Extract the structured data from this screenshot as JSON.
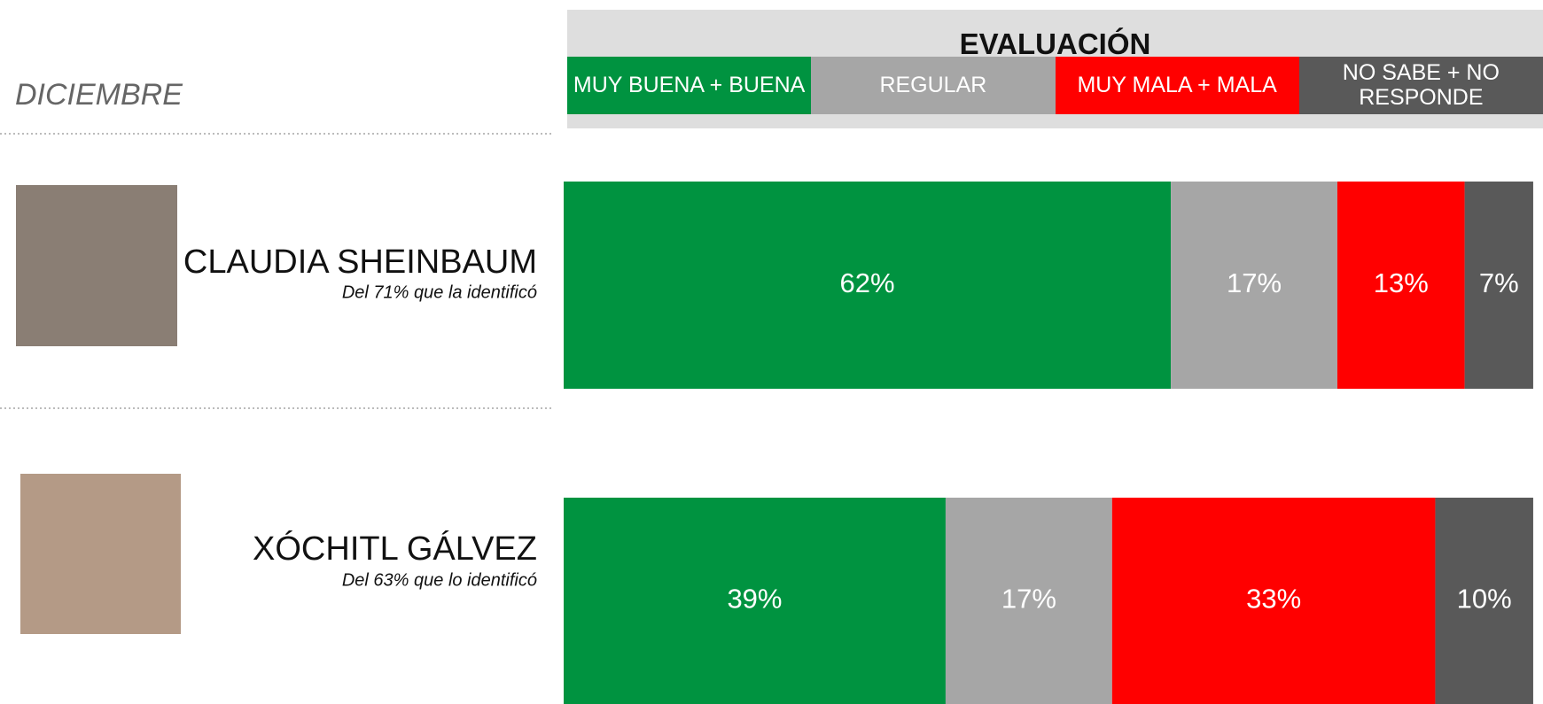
{
  "chart_data": {
    "type": "stacked-bar",
    "period": "DICIEMBRE",
    "legend_title": "EVALUACIÓN",
    "categories": [
      "CLAUDIA SHEINBAUM",
      "XÓCHITL GÁLVEZ"
    ],
    "subtitles": [
      "Del 71% que la identificó",
      "Del 63% que lo identificó"
    ],
    "series": [
      {
        "name": "MUY BUENA + BUENA",
        "color": "#009340",
        "values": [
          62,
          39
        ],
        "value_labels": [
          "62%",
          "39%"
        ]
      },
      {
        "name": "REGULAR",
        "color": "#a6a6a6",
        "values": [
          17,
          17
        ],
        "value_labels": [
          "17%",
          "17%"
        ]
      },
      {
        "name": "MUY MALA + MALA",
        "color": "#ff0000",
        "values": [
          13,
          33
        ],
        "value_labels": [
          "13%",
          "33%"
        ]
      },
      {
        "name": "NO SABE + NO RESPONDE",
        "color": "#595959",
        "values": [
          7,
          10
        ],
        "value_labels": [
          "7%",
          "10%"
        ]
      }
    ],
    "xlim": [
      0,
      100
    ]
  }
}
